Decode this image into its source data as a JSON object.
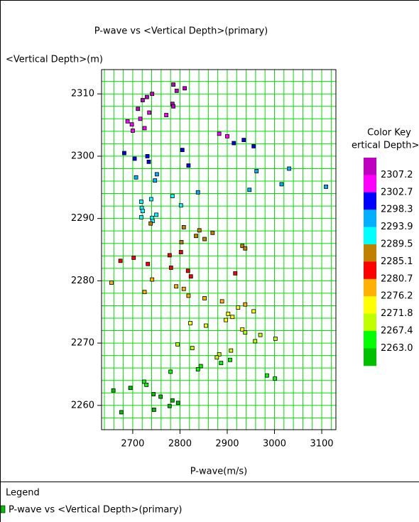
{
  "chart_data": {
    "type": "scatter",
    "title": "P-wave vs <Vertical Depth>(primary)",
    "x_label": "P-wave(m/s)",
    "y_label": "<Vertical Depth>(m)",
    "xlim": [
      2634,
      3130
    ],
    "ylim": [
      2256.1,
      2313.9
    ],
    "xticks": [
      2700,
      2800,
      2900,
      3000,
      3100
    ],
    "yticks": [
      2260,
      2270,
      2280,
      2290,
      2300,
      2310
    ],
    "grid": true,
    "grid_color": "#00e000",
    "x_grid_step": 20,
    "y_grid_step": 2,
    "series": [
      {
        "name": "P-wave vs <Vertical Depth>(primary)",
        "color": "#00c000",
        "x": [
          2786,
          2810,
          2793,
          2741,
          2730,
          2721,
          2784,
          2786,
          2711,
          2735,
          2771,
          2716,
          2689,
          2698,
          2725,
          2700,
          2883,
          2900,
          2935,
          2914,
          2956,
          2805,
          2682,
          2731,
          2704,
          2734,
          2818,
          3031,
          2962,
          2751,
          2707,
          2747,
          3015,
          3109,
          2947,
          2838,
          2784,
          2739,
          2718,
          2802,
          2719,
          2721,
          2750,
          2741,
          2718,
          2742,
          2738,
          2808,
          2841,
          2869,
          2834,
          2852,
          2803,
          2932,
          2938,
          2802,
          2778,
          2702,
          2674,
          2732,
          2781,
          2817,
          2917,
          2823,
          2741,
          2655,
          2792,
          2808,
          2725,
          2818,
          2852,
          2889,
          2938,
          2923,
          2956,
          2902,
          2911,
          2897,
          2822,
          2855,
          2932,
          2938,
          2970,
          3002,
          2959,
          2795,
          2826,
          2908,
          2883,
          2878,
          2906,
          2887,
          2844,
          2838,
          2780,
          2984,
          3001,
          2724,
          2729,
          2695,
          2659,
          2744,
          2759,
          2784,
          2796,
          2778,
          2745,
          2676
        ],
        "y": [
          2311.5,
          2310.9,
          2310.5,
          2310,
          2309.5,
          2309,
          2308.4,
          2308,
          2307.6,
          2307,
          2306.6,
          2306,
          2305.6,
          2305.1,
          2304.5,
          2304.1,
          2303.6,
          2303.2,
          2302.6,
          2302.1,
          2301.6,
          2301,
          2300.5,
          2300,
          2299.6,
          2299.1,
          2298.5,
          2298,
          2297.6,
          2297.1,
          2296.6,
          2296.1,
          2295.5,
          2295.1,
          2294.6,
          2294.2,
          2293.6,
          2293.1,
          2292.7,
          2292.1,
          2291.7,
          2291.2,
          2290.6,
          2290.1,
          2290.2,
          2289.6,
          2289.2,
          2288.6,
          2288.1,
          2287.7,
          2287.2,
          2286.7,
          2286.2,
          2285.6,
          2285.2,
          2284.6,
          2284.1,
          2283.7,
          2283.2,
          2282.7,
          2282.1,
          2281.6,
          2281.2,
          2280.7,
          2280.2,
          2279.7,
          2279.1,
          2278.7,
          2278.2,
          2277.6,
          2277.2,
          2276.7,
          2276.2,
          2275.7,
          2275.1,
          2274.7,
          2274.2,
          2273.7,
          2273.2,
          2272.8,
          2272.2,
          2271.7,
          2271.3,
          2270.7,
          2270.3,
          2269.8,
          2269.2,
          2268.8,
          2268.2,
          2267.7,
          2267.3,
          2266.8,
          2266.3,
          2265.8,
          2265.4,
          2264.8,
          2264.3,
          2263.8,
          2263.3,
          2262.8,
          2262.4,
          2261.8,
          2261.4,
          2260.8,
          2260.4,
          2259.9,
          2259.3,
          2258.9
        ]
      }
    ],
    "color_key": {
      "title": "Color Key",
      "subtitle": "ertical Depth>(m",
      "levels": [
        2307.2,
        2302.7,
        2298.3,
        2293.9,
        2289.5,
        2285.1,
        2280.7,
        2276.2,
        2271.8,
        2267.4,
        2263.0
      ],
      "value_labels": [
        "2307.2",
        "2302.7",
        "2298.3",
        "2293.9",
        "2289.5",
        "2285.1",
        "2280.7",
        "2276.2",
        "2271.8",
        "2267.4",
        "2263.0"
      ],
      "colors": [
        "#c000c0",
        "#ff00ff",
        "#0000ff",
        "#00b0ff",
        "#00ffff",
        "#c08000",
        "#ff0000",
        "#ffb000",
        "#ffff00",
        "#c0ff00",
        "#00ff00",
        "#00c000"
      ]
    },
    "legend_title": "Legend"
  }
}
